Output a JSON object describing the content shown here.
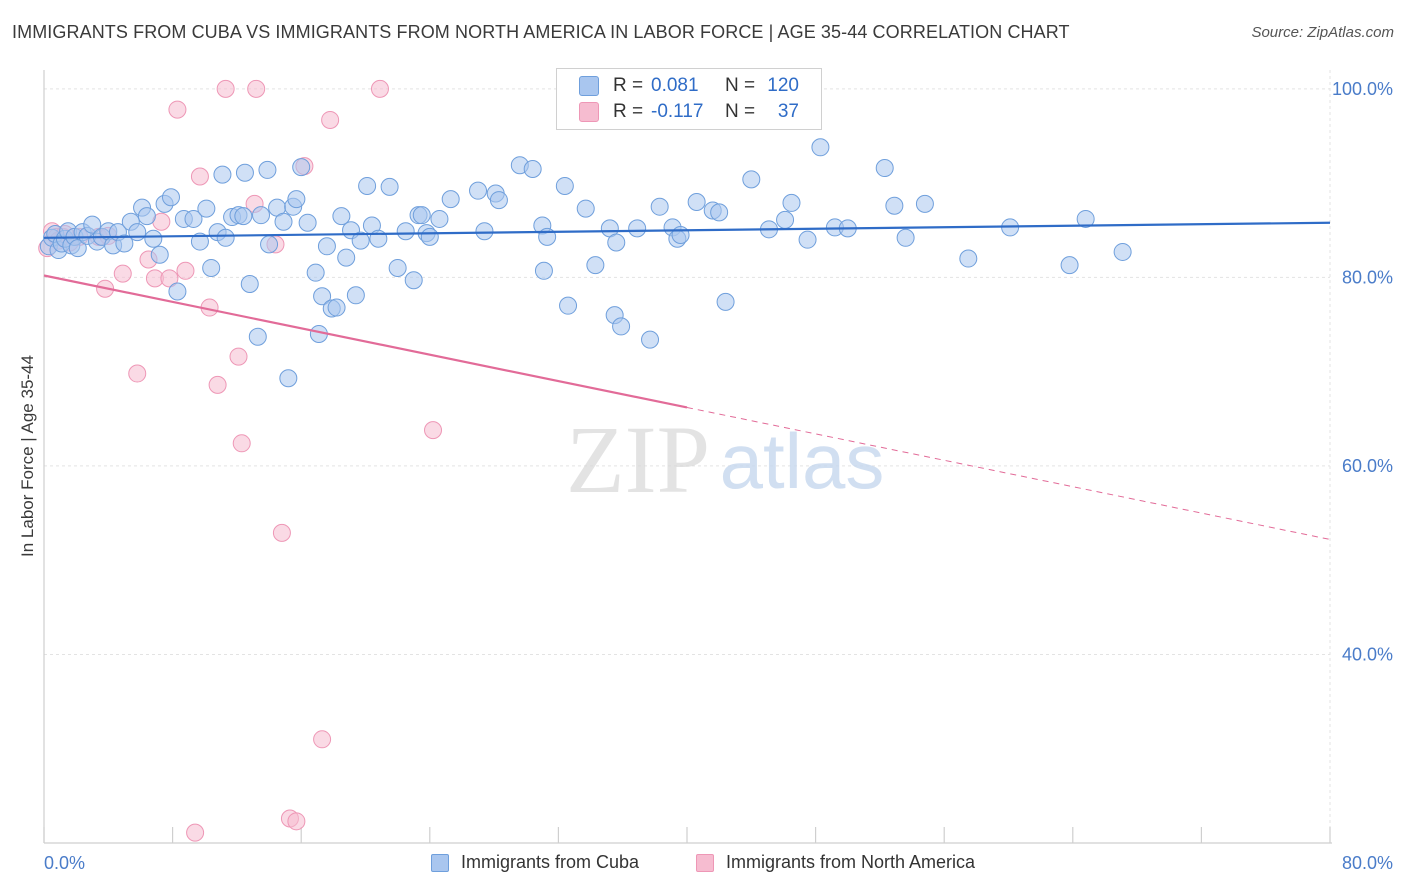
{
  "title": "IMMIGRANTS FROM CUBA VS IMMIGRANTS FROM NORTH AMERICA IN LABOR FORCE | AGE 35-44 CORRELATION CHART",
  "source": "Source: ZipAtlas.com",
  "watermark": {
    "zip": "ZIP",
    "atlas": "atlas"
  },
  "colors": {
    "cuba_fill": "#a9c6ef",
    "cuba_stroke": "#6f9fdc",
    "cuba_line": "#2f6cc7",
    "na_fill": "#f6bcd0",
    "na_stroke": "#ee97b6",
    "na_line": "#e26b98",
    "axis_label": "#4a7cc9",
    "grid": "#e3e3e3"
  },
  "legend": {
    "rows": [
      {
        "r_label": "R =",
        "r_value": "0.081",
        "n_label": "N =",
        "n_value": "120"
      },
      {
        "r_label": "R =",
        "r_value": "-0.117",
        "n_label": "N =",
        "n_value": "37"
      }
    ]
  },
  "bottom_legend": [
    "Immigrants from Cuba",
    "Immigrants from North America"
  ],
  "chart_data": {
    "type": "scatter",
    "title": "IMMIGRANTS FROM CUBA VS IMMIGRANTS FROM NORTH AMERICA IN LABOR FORCE | AGE 35-44 CORRELATION CHART",
    "xlabel": "",
    "ylabel": "In Labor Force | Age 35-44",
    "xlim": [
      0,
      80
    ],
    "ylim": [
      20,
      102
    ],
    "x_tick_labels": [
      "0.0%",
      "80.0%"
    ],
    "y_ticks": [
      {
        "value": 100,
        "label": "100.0%"
      },
      {
        "value": 80,
        "label": "80.0%"
      },
      {
        "value": 60,
        "label": "60.0%"
      },
      {
        "value": 40,
        "label": "40.0%"
      }
    ],
    "grid": true,
    "series": [
      {
        "name": "Immigrants from Cuba",
        "r": 0.081,
        "n": 120,
        "trend": {
          "x0": 0,
          "y0": 84.2,
          "x1": 80,
          "y1": 85.8,
          "dashed_from": null
        },
        "points": [
          [
            0.3,
            83.3
          ],
          [
            0.5,
            84.2
          ],
          [
            0.7,
            84.6
          ],
          [
            0.9,
            82.9
          ],
          [
            1.1,
            83.6
          ],
          [
            1.3,
            84.1
          ],
          [
            1.5,
            84.9
          ],
          [
            1.7,
            83.4
          ],
          [
            1.9,
            84.3
          ],
          [
            2.1,
            83.1
          ],
          [
            2.4,
            84.8
          ],
          [
            2.7,
            84.4
          ],
          [
            3,
            85.6
          ],
          [
            3.3,
            83.8
          ],
          [
            3.6,
            84.3
          ],
          [
            4,
            84.9
          ],
          [
            4.3,
            83.4
          ],
          [
            4.6,
            84.8
          ],
          [
            5,
            83.6
          ],
          [
            5.4,
            85.9
          ],
          [
            5.8,
            84.8
          ],
          [
            6.1,
            87.4
          ],
          [
            6.4,
            86.5
          ],
          [
            6.8,
            84.1
          ],
          [
            7.2,
            82.4
          ],
          [
            7.5,
            87.8
          ],
          [
            7.9,
            88.5
          ],
          [
            8.3,
            78.5
          ],
          [
            8.7,
            86.2
          ],
          [
            9.3,
            86.2
          ],
          [
            9.7,
            83.8
          ],
          [
            10.1,
            87.3
          ],
          [
            10.4,
            81
          ],
          [
            10.8,
            84.8
          ],
          [
            11.1,
            90.9
          ],
          [
            11.3,
            84.2
          ],
          [
            11.7,
            86.4
          ],
          [
            12.1,
            86.6
          ],
          [
            12.4,
            86.5
          ],
          [
            12.5,
            91.1
          ],
          [
            12.8,
            79.3
          ],
          [
            13.3,
            73.7
          ],
          [
            13.5,
            86.6
          ],
          [
            13.9,
            91.4
          ],
          [
            14,
            83.5
          ],
          [
            14.5,
            87.4
          ],
          [
            14.9,
            85.9
          ],
          [
            15.2,
            69.3
          ],
          [
            15.5,
            87.5
          ],
          [
            15.7,
            88.3
          ],
          [
            16,
            91.7
          ],
          [
            16.4,
            85.8
          ],
          [
            16.9,
            80.5
          ],
          [
            17.1,
            74
          ],
          [
            17.3,
            78
          ],
          [
            17.6,
            83.3
          ],
          [
            17.9,
            76.7
          ],
          [
            18.2,
            76.8
          ],
          [
            18.5,
            86.5
          ],
          [
            18.8,
            82.1
          ],
          [
            19.1,
            85
          ],
          [
            19.4,
            78.1
          ],
          [
            19.7,
            83.9
          ],
          [
            20.1,
            89.7
          ],
          [
            20.4,
            85.5
          ],
          [
            20.8,
            84.1
          ],
          [
            21.5,
            89.6
          ],
          [
            22,
            81
          ],
          [
            22.5,
            84.9
          ],
          [
            23,
            79.7
          ],
          [
            23.3,
            86.6
          ],
          [
            23.5,
            86.6
          ],
          [
            23.8,
            84.7
          ],
          [
            24,
            84.3
          ],
          [
            24.6,
            86.2
          ],
          [
            25.3,
            88.3
          ],
          [
            27,
            89.2
          ],
          [
            27.4,
            84.9
          ],
          [
            28.1,
            88.9
          ],
          [
            28.3,
            88.2
          ],
          [
            29.6,
            91.9
          ],
          [
            30.4,
            91.5
          ],
          [
            31,
            85.5
          ],
          [
            31.1,
            80.7
          ],
          [
            31.3,
            84.3
          ],
          [
            32.4,
            89.7
          ],
          [
            32.6,
            77
          ],
          [
            33.7,
            87.3
          ],
          [
            34.3,
            81.3
          ],
          [
            35.2,
            85.2
          ],
          [
            35.5,
            76
          ],
          [
            35.6,
            83.7
          ],
          [
            35.9,
            74.8
          ],
          [
            36.9,
            85.2
          ],
          [
            37.7,
            73.4
          ],
          [
            38.3,
            87.5
          ],
          [
            39.1,
            85.3
          ],
          [
            39.4,
            84.1
          ],
          [
            39.6,
            84.5
          ],
          [
            40.6,
            88
          ],
          [
            41.6,
            87.1
          ],
          [
            42,
            86.9
          ],
          [
            42.4,
            77.4
          ],
          [
            44,
            90.4
          ],
          [
            45.1,
            85.1
          ],
          [
            46.1,
            86.1
          ],
          [
            46.5,
            87.9
          ],
          [
            47.5,
            84
          ],
          [
            48.3,
            93.8
          ],
          [
            49.2,
            85.3
          ],
          [
            50,
            85.2
          ],
          [
            52.3,
            91.6
          ],
          [
            52.9,
            87.6
          ],
          [
            53.6,
            84.2
          ],
          [
            54.8,
            87.8
          ],
          [
            57.5,
            82
          ],
          [
            60.1,
            85.3
          ],
          [
            63.8,
            81.3
          ],
          [
            64.8,
            86.2
          ],
          [
            67.1,
            82.7
          ]
        ]
      },
      {
        "name": "Immigrants from North America",
        "r": -0.117,
        "n": 37,
        "trend": {
          "x0": 0,
          "y0": 80.2,
          "x1": 80,
          "y1": 52.2,
          "dashed_from": 40
        },
        "points": [
          [
            0.2,
            83.1
          ],
          [
            0.5,
            84.9
          ],
          [
            0.8,
            84.3
          ],
          [
            1.2,
            84.3
          ],
          [
            1.6,
            83.7
          ],
          [
            2.2,
            84.3
          ],
          [
            3.4,
            84.3
          ],
          [
            4,
            84.4
          ],
          [
            3.8,
            78.8
          ],
          [
            4.9,
            80.4
          ],
          [
            5.8,
            69.8
          ],
          [
            6.5,
            81.9
          ],
          [
            6.9,
            79.9
          ],
          [
            7.3,
            85.9
          ],
          [
            7.8,
            79.9
          ],
          [
            8.3,
            97.8
          ],
          [
            8.8,
            80.7
          ],
          [
            9.4,
            21.1
          ],
          [
            9.7,
            90.7
          ],
          [
            10.3,
            76.8
          ],
          [
            10.8,
            68.6
          ],
          [
            11.3,
            100
          ],
          [
            12.1,
            71.6
          ],
          [
            12.3,
            62.4
          ],
          [
            13.2,
            100
          ],
          [
            13.1,
            87.8
          ],
          [
            14.4,
            83.5
          ],
          [
            14.8,
            52.9
          ],
          [
            15.3,
            22.6
          ],
          [
            15.7,
            22.3
          ],
          [
            16.2,
            91.8
          ],
          [
            17.3,
            31
          ],
          [
            17.8,
            96.7
          ],
          [
            20.9,
            100
          ],
          [
            24.2,
            63.8
          ],
          [
            1.3,
            84.6
          ],
          [
            0.9,
            83.9
          ]
        ]
      }
    ]
  }
}
